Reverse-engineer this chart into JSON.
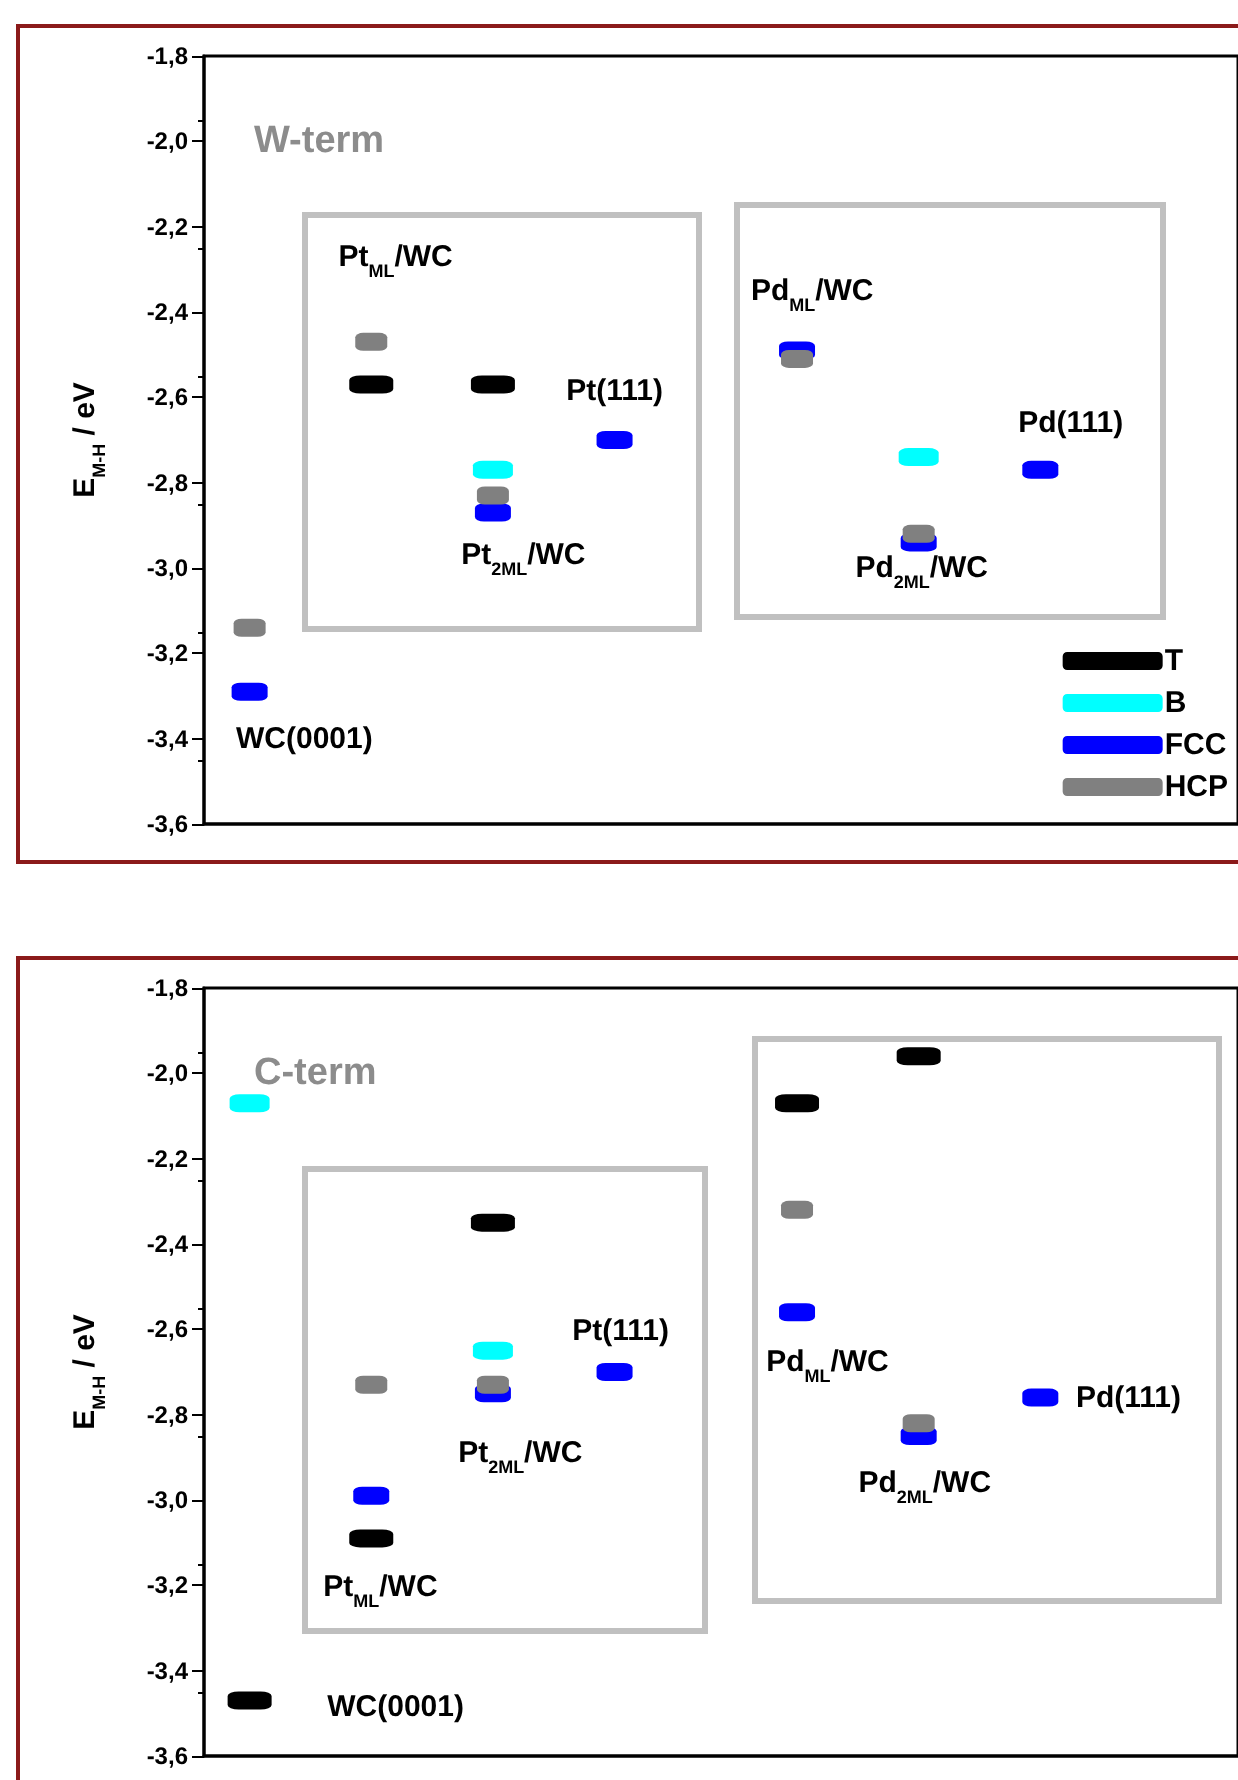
{
  "chart_data": [
    {
      "type": "scatter",
      "title": "W-term",
      "ylabel": "E$_{M-H}$ / eV",
      "categories": [
        null,
        null,
        null,
        null,
        null,
        null,
        null,
        null,
        null,
        null,
        null,
        null,
        null,
        null,
        null,
        null,
        null,
        null,
        null,
        null,
        null,
        null,
        null,
        null,
        null,
        null,
        null,
        null,
        null,
        null,
        null,
        null,
        null,
        null
      ],
      "series": [
        {
          "name": "T",
          "color": "#000000",
          "values": [
            null,
            null,
            null,
            null,
            null,
            -2.57,
            null,
            null,
            null,
            -2.57,
            null,
            null,
            null,
            null,
            null,
            null,
            null,
            null,
            null,
            null,
            null,
            null,
            null,
            null,
            null,
            null,
            null,
            null,
            null,
            null,
            null,
            null,
            null,
            null
          ]
        },
        {
          "name": "B",
          "color": "#00ffff",
          "values": [
            null,
            null,
            null,
            null,
            null,
            null,
            null,
            null,
            null,
            -2.77,
            null,
            null,
            null,
            null,
            null,
            null,
            null,
            null,
            null,
            null,
            null,
            null,
            null,
            -2.74,
            null,
            null,
            null,
            null,
            null,
            null,
            null,
            null,
            null,
            null
          ]
        },
        {
          "name": "FCC",
          "color": "#0000ff",
          "values": [
            null,
            -3.29,
            null,
            null,
            null,
            null,
            null,
            null,
            null,
            -2.87,
            null,
            null,
            null,
            -2.7,
            null,
            null,
            null,
            null,
            null,
            -2.49,
            null,
            null,
            null,
            -2.94,
            null,
            null,
            null,
            -2.77,
            null,
            null,
            null,
            null,
            null,
            null
          ]
        },
        {
          "name": "HCP",
          "color": "#808080",
          "values": [
            null,
            -3.14,
            null,
            null,
            null,
            -2.47,
            null,
            null,
            null,
            -2.83,
            null,
            null,
            null,
            null,
            null,
            null,
            null,
            null,
            null,
            -2.51,
            null,
            null,
            null,
            -2.92,
            null,
            null,
            null,
            null,
            null,
            null,
            null,
            null,
            null,
            null
          ]
        }
      ],
      "ylim": [
        -3.6,
        -1.8
      ],
      "yticks": [
        {
          "value": -3.6,
          "label": "-3,6"
        },
        {
          "value": -3.4,
          "label": "-3,4"
        },
        {
          "value": -3.2,
          "label": "-3,2"
        },
        {
          "value": -3.0,
          "label": "-3,0"
        },
        {
          "value": -2.8,
          "label": "-2,8"
        },
        {
          "value": -2.6,
          "label": "-2,6"
        },
        {
          "value": -2.4,
          "label": "-2,4"
        },
        {
          "value": -2.2,
          "label": "-2,2"
        },
        {
          "value": -2.0,
          "label": "-2,0"
        },
        {
          "value": -1.8,
          "label": "-1,8"
        }
      ],
      "annotations": [
        "Pt$_{ML}$/WC",
        "Pt$_{2ML}$/WC",
        "Pt(111)",
        "Pd$_{ML}$/WC",
        "Pd$_{2ML}$/WC",
        "Pd(111)",
        "WC(0001)"
      ],
      "legend": "bottom right",
      "tick_labels": "y"
    },
    {
      "type": "scatter",
      "title": "C-term",
      "ylabel": "E$_{M-H}$ / eV",
      "categories": [
        null,
        null,
        null,
        null,
        null,
        null,
        null,
        null,
        null,
        null,
        null,
        null,
        null,
        null,
        null,
        null,
        null,
        null,
        null,
        null,
        null,
        null,
        null,
        null,
        null,
        null,
        null,
        null,
        null,
        null,
        null,
        null,
        null,
        null
      ],
      "series": [
        {
          "color": "#000000",
          "values": [
            null,
            -3.47,
            null,
            null,
            null,
            -3.09,
            null,
            null,
            null,
            -2.35,
            null,
            null,
            null,
            null,
            null,
            null,
            null,
            null,
            null,
            -2.07,
            null,
            null,
            null,
            -1.96,
            null,
            null,
            null,
            null,
            null,
            null,
            null,
            null,
            null,
            null
          ]
        },
        {
          "color": "#00ffff",
          "values": [
            null,
            -2.07,
            null,
            null,
            null,
            null,
            null,
            null,
            null,
            -2.65,
            null,
            null,
            null,
            null,
            null,
            null,
            null,
            null,
            null,
            null,
            null,
            null,
            null,
            null,
            null,
            null,
            null,
            null,
            null,
            null,
            null,
            null,
            null,
            null
          ]
        },
        {
          "color": "#0000ff",
          "values": [
            null,
            null,
            null,
            null,
            null,
            -2.99,
            null,
            null,
            null,
            -2.75,
            null,
            null,
            null,
            -2.7,
            null,
            null,
            null,
            null,
            null,
            -2.56,
            null,
            null,
            null,
            -2.85,
            null,
            null,
            null,
            -2.76,
            null,
            null,
            null,
            null,
            null,
            null
          ]
        },
        {
          "color": "#808080",
          "values": [
            null,
            null,
            null,
            null,
            null,
            -2.73,
            null,
            null,
            null,
            -2.73,
            null,
            null,
            null,
            null,
            null,
            null,
            null,
            null,
            null,
            -2.32,
            null,
            null,
            null,
            -2.82,
            null,
            null,
            null,
            null,
            null,
            null,
            null,
            null,
            null,
            null
          ]
        }
      ],
      "ylim": [
        -3.6,
        -1.8
      ],
      "yticks": [
        {
          "value": -3.6,
          "label": "-3,6"
        },
        {
          "value": -3.4,
          "label": "-3,4"
        },
        {
          "value": -3.2,
          "label": "-3,2"
        },
        {
          "value": -3.0,
          "label": "-3,0"
        },
        {
          "value": -2.8,
          "label": "-2,8"
        },
        {
          "value": -2.6,
          "label": "-2,6"
        },
        {
          "value": -2.4,
          "label": "-2,4"
        },
        {
          "value": -2.2,
          "label": "-2,2"
        },
        {
          "value": -2.0,
          "label": "-2,0"
        },
        {
          "value": -1.8,
          "label": "-1,8"
        }
      ],
      "annotations": [
        "Pt$_{ML}$/WC",
        "Pt$_{2ML}$/WC",
        "Pt(111)",
        "Pd$_{ML}$/WC",
        "Pd$_{2ML}$/WC",
        "Pd(111)",
        "WC(0001)"
      ],
      "tick_labels": "y"
    }
  ]
}
